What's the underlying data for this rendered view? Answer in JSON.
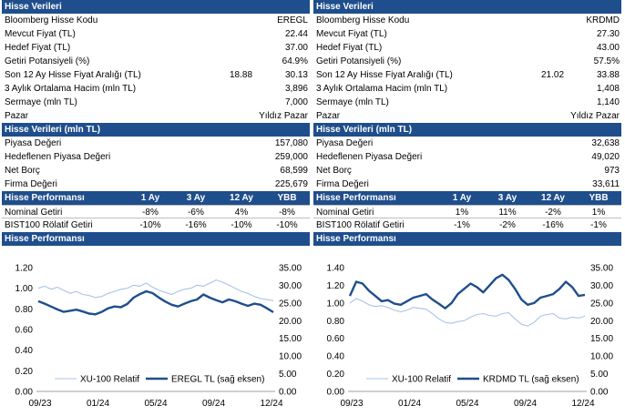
{
  "left": {
    "section1_title": "Hisse Verileri",
    "rows": [
      {
        "label": "Bloomberg Hisse Kodu",
        "value": "EREGL"
      },
      {
        "label": "Mevcut Fiyat (TL)",
        "value": "22.44"
      },
      {
        "label": "Hedef Fiyat (TL)",
        "value": "37.00"
      },
      {
        "label": "Getiri Potansiyeli (%)",
        "value": "64.9%"
      },
      {
        "label": "Son 12 Ay Hisse Fiyat Aralığı (TL)",
        "low": "18.88",
        "value": "30.13"
      },
      {
        "label": "3 Aylık Ortalama Hacim (mln TL)",
        "value": "3,896"
      },
      {
        "label": "Sermaye (mln TL)",
        "value": "7,000"
      },
      {
        "label": "Pazar",
        "value": "Yıldız Pazar"
      }
    ],
    "section2_title": "Hisse Verileri (mln TL)",
    "rows2": [
      {
        "label": "Piyasa Değeri",
        "value": "157,080"
      },
      {
        "label": "Hedeflenen Piyasa Değeri",
        "value": "259,000"
      },
      {
        "label": "Net Borç",
        "value": "68,599"
      },
      {
        "label": "Firma Değeri",
        "value": "225,679"
      }
    ],
    "perf_title": "Hisse Performansı",
    "perf_cols": [
      "1 Ay",
      "3 Ay",
      "12 Ay",
      "YBB"
    ],
    "perf_rows": [
      {
        "label": "Nominal Getiri",
        "vals": [
          "-8%",
          "-6%",
          "4%",
          "-8%"
        ]
      },
      {
        "label": "BIST100 Rölatif Getiri",
        "vals": [
          "-10%",
          "-16%",
          "-10%",
          "-10%"
        ]
      }
    ],
    "chart_title": "Hisse Performansı"
  },
  "right": {
    "section1_title": "Hisse Verileri",
    "rows": [
      {
        "label": "Bloomberg Hisse Kodu",
        "value": "KRDMD"
      },
      {
        "label": "Mevcut Fiyat (TL)",
        "value": "27.30"
      },
      {
        "label": "Hedef Fiyat (TL)",
        "value": "43.00"
      },
      {
        "label": "Getiri Potansiyeli (%)",
        "value": "57.5%"
      },
      {
        "label": "Son 12 Ay Hisse Fiyat Aralığı (TL)",
        "low": "21.02",
        "value": "33.88"
      },
      {
        "label": "3 Aylık Ortalama Hacim (mln TL)",
        "value": "1,408"
      },
      {
        "label": "Sermaye (mln TL)",
        "value": "1,140"
      },
      {
        "label": "Pazar",
        "value": "Yıldız Pazar"
      }
    ],
    "section2_title": "Hisse Verileri (mln TL)",
    "rows2": [
      {
        "label": "Piyasa Değeri",
        "value": "32,638"
      },
      {
        "label": "Hedeflenen Piyasa Değeri",
        "value": "49,020"
      },
      {
        "label": "Net Borç",
        "value": "973"
      },
      {
        "label": "Firma Değeri",
        "value": "33,611"
      }
    ],
    "perf_title": "Hisse Performansı",
    "perf_cols": [
      "1 Ay",
      "3 Ay",
      "12 Ay",
      "YBB"
    ],
    "perf_rows": [
      {
        "label": "Nominal Getiri",
        "vals": [
          "1%",
          "11%",
          "-2%",
          "1%"
        ]
      },
      {
        "label": "BIST100 Rölatif Getiri",
        "vals": [
          "-1%",
          "-2%",
          "-16%",
          "-1%"
        ]
      }
    ],
    "chart_title": "Hisse Performansı"
  },
  "colors": {
    "header_bg": "#1f4e8c",
    "relative_line": "#a9c4e6",
    "price_line": "#1f4e8c"
  },
  "chart_data": [
    {
      "type": "line",
      "title": "Hisse Performansı",
      "x_ticks": [
        "09/23",
        "01/24",
        "05/24",
        "09/24",
        "12/24"
      ],
      "y_left_ticks": [
        "0.00",
        "0.20",
        "0.40",
        "0.60",
        "0.80",
        "1.00",
        "1.20"
      ],
      "y_right_ticks": [
        "0.00",
        "5.00",
        "10.00",
        "15.00",
        "20.00",
        "25.00",
        "30.00",
        "35.00"
      ],
      "y_left_range": [
        0,
        1.2
      ],
      "y_right_range": [
        0,
        35
      ],
      "series": [
        {
          "name": "XU-100 Relatif",
          "axis": "left",
          "values": [
            1.0,
            1.02,
            0.99,
            1.01,
            0.98,
            0.95,
            0.97,
            0.94,
            0.93,
            0.91,
            0.92,
            0.95,
            0.97,
            0.99,
            1.0,
            1.03,
            1.02,
            1.05,
            1.01,
            0.98,
            0.96,
            0.94,
            0.97,
            0.99,
            1.0,
            1.03,
            1.02,
            1.05,
            1.08,
            1.06,
            1.03,
            1.0,
            0.97,
            0.95,
            0.92,
            0.9,
            0.89,
            0.88
          ]
        },
        {
          "name": "EREGL TL (sağ eksen)",
          "axis": "right",
          "values": [
            25.5,
            24.8,
            24.0,
            23.2,
            22.5,
            22.8,
            23.1,
            22.6,
            22.0,
            21.8,
            22.5,
            23.5,
            24.0,
            23.8,
            24.7,
            26.5,
            27.5,
            28.3,
            27.8,
            26.5,
            25.4,
            24.5,
            24.0,
            24.8,
            25.5,
            26.0,
            27.4,
            26.5,
            25.8,
            25.2,
            26.0,
            25.5,
            24.8,
            24.2,
            24.8,
            24.5,
            23.5,
            22.4
          ]
        }
      ]
    },
    {
      "type": "line",
      "title": "Hisse Performansı",
      "x_ticks": [
        "09/23",
        "01/24",
        "05/24",
        "09/24",
        "12/24"
      ],
      "y_left_ticks": [
        "0.00",
        "0.20",
        "0.40",
        "0.60",
        "0.80",
        "1.00",
        "1.20",
        "1.40"
      ],
      "y_right_ticks": [
        "0.00",
        "5.00",
        "10.00",
        "15.00",
        "20.00",
        "25.00",
        "30.00",
        "35.00"
      ],
      "y_left_range": [
        0,
        1.4
      ],
      "y_right_range": [
        0,
        35
      ],
      "series": [
        {
          "name": "XU-100 Relatif",
          "axis": "left",
          "values": [
            1.0,
            1.05,
            1.02,
            0.98,
            0.96,
            0.97,
            0.95,
            0.92,
            0.9,
            0.92,
            0.95,
            0.94,
            0.93,
            0.88,
            0.82,
            0.78,
            0.77,
            0.79,
            0.8,
            0.84,
            0.87,
            0.88,
            0.86,
            0.85,
            0.88,
            0.89,
            0.82,
            0.76,
            0.74,
            0.78,
            0.85,
            0.87,
            0.88,
            0.83,
            0.82,
            0.84,
            0.83,
            0.85
          ]
        },
        {
          "name": "KRDMD TL (sağ eksen)",
          "axis": "right",
          "values": [
            27.0,
            31.0,
            30.5,
            28.5,
            27.0,
            25.5,
            25.8,
            24.8,
            24.5,
            25.5,
            26.5,
            27.0,
            27.5,
            26.0,
            24.8,
            23.5,
            25.0,
            27.5,
            29.0,
            30.5,
            29.5,
            28.0,
            30.0,
            32.0,
            33.0,
            31.5,
            29.0,
            26.0,
            24.5,
            25.0,
            26.5,
            27.0,
            27.5,
            29.0,
            31.0,
            29.5,
            27.0,
            27.3
          ]
        }
      ]
    }
  ]
}
